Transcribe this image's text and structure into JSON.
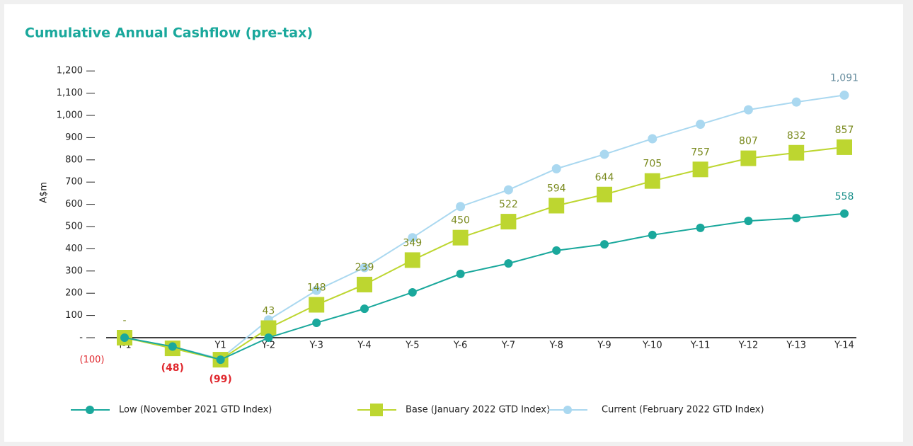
{
  "chart_data": {
    "type": "line",
    "title": "Cumulative Annual Cashflow (pre-tax)",
    "y_label": "A$m",
    "categories": [
      "Y-1",
      "Y0",
      "Y1",
      "Y-2",
      "Y-3",
      "Y-4",
      "Y-5",
      "Y-6",
      "Y-7",
      "Y-8",
      "Y-9",
      "Y-10",
      "Y-11",
      "Y-12",
      "Y-13",
      "Y-14"
    ],
    "ylim": [
      -100,
      1200
    ],
    "yticks": [
      {
        "value": -100,
        "label": "(100)"
      },
      {
        "value": 0,
        "label": "-"
      },
      100,
      200,
      300,
      400,
      500,
      600,
      700,
      800,
      900,
      {
        "value": 1000,
        "label": "1,000"
      },
      {
        "value": 1100,
        "label": "1,100"
      },
      {
        "value": 1200,
        "label": "1,200"
      }
    ],
    "series": [
      {
        "name": "Low (November 2021 GTD Index)",
        "color": "#1aa89c",
        "marker": "circle",
        "values": [
          0,
          -40,
          -99,
          0,
          67,
          130,
          204,
          287,
          334,
          392,
          420,
          462,
          494,
          525,
          538,
          558
        ],
        "value_labels": [
          null,
          null,
          null,
          null,
          null,
          null,
          null,
          null,
          null,
          null,
          null,
          null,
          null,
          null,
          null,
          "558"
        ]
      },
      {
        "name": "Base (January 2022 GTD Index)",
        "color": "#bdd630",
        "marker": "square",
        "values": [
          0,
          -48,
          -99,
          43,
          148,
          239,
          349,
          450,
          522,
          594,
          644,
          705,
          757,
          807,
          832,
          857
        ],
        "value_labels": [
          "-",
          "(48)",
          "(99)",
          "43",
          "148",
          "239",
          "349",
          "450",
          "522",
          "594",
          "644",
          "705",
          "757",
          "807",
          "832",
          "857"
        ]
      },
      {
        "name": "Current (February 2022 GTD Index)",
        "color": "#aad8f0",
        "marker": "circle",
        "values": [
          0,
          -40,
          -95,
          80,
          213,
          315,
          450,
          590,
          665,
          760,
          825,
          895,
          960,
          1025,
          1060,
          1091
        ],
        "value_labels": [
          null,
          null,
          null,
          null,
          null,
          null,
          null,
          null,
          null,
          null,
          null,
          null,
          null,
          null,
          null,
          "1,091"
        ]
      }
    ]
  }
}
